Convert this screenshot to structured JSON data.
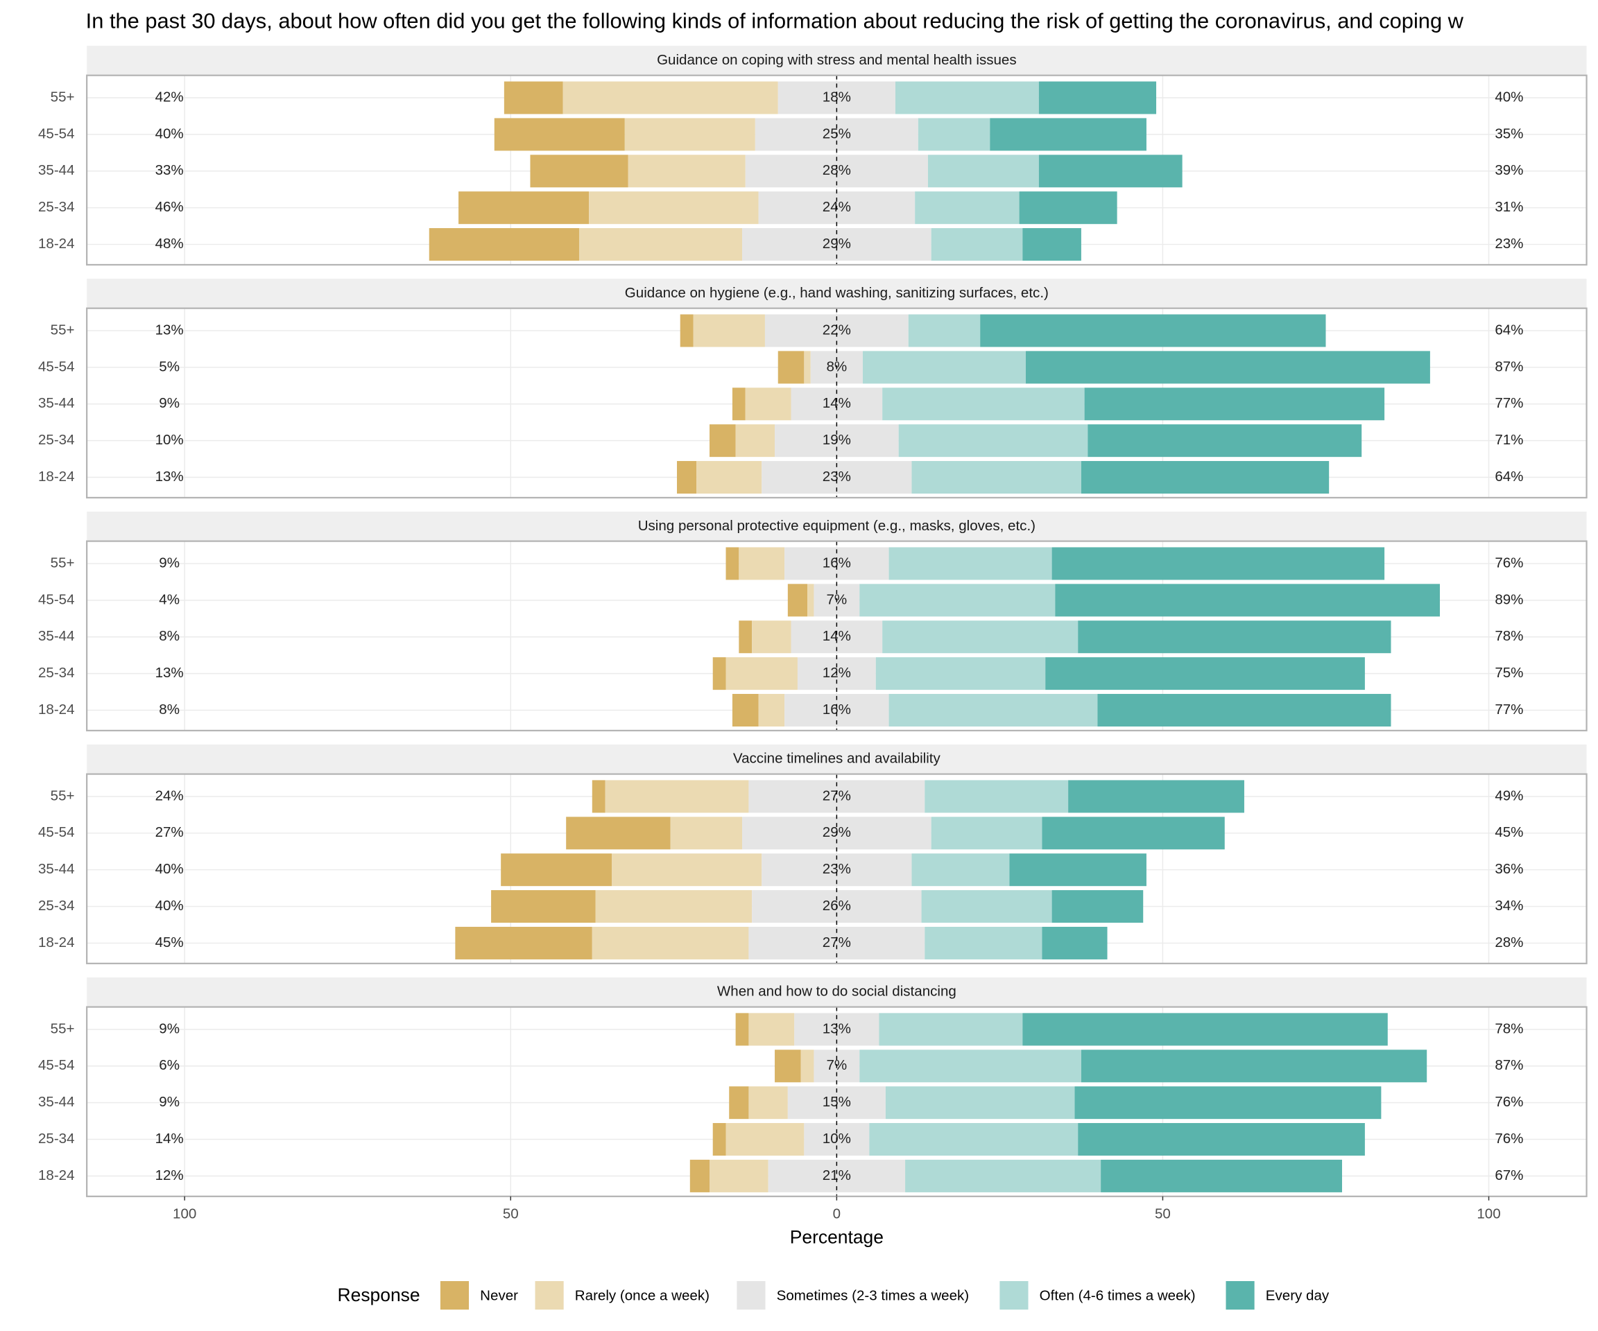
{
  "chart_data": {
    "type": "bar",
    "title": "In the past 30 days, about how often did you get the following kinds of information about reducing the risk of getting the coronavirus, and coping w",
    "x_label": "Percentage",
    "legend_title": "Response",
    "xlim": [
      -115,
      115
    ],
    "xticks": [
      {
        "value": -100,
        "label": "100"
      },
      {
        "value": -50,
        "label": "50"
      },
      0,
      50,
      100
    ],
    "grid": true,
    "panels": [
      {
        "title": "Guidance on coping with stress and mental health issues",
        "categories": [
          "55+",
          "45-54",
          "35-44",
          "25-34",
          "18-24"
        ],
        "series": [
          {
            "name": "Never",
            "color": "#d8b365",
            "values": [
              9,
              20,
              15,
              20,
              23
            ]
          },
          {
            "name": "Rarely (once a week)",
            "color": "#ebdab2",
            "values": [
              33,
              20,
              18,
              26,
              25
            ]
          },
          {
            "name": "Sometimes (2-3 times a week)",
            "color": "#e5e5e5",
            "values": [
              18,
              25,
              28,
              24,
              29
            ]
          },
          {
            "name": "Often (4-6 times a week)",
            "color": "#afdad6",
            "values": [
              22,
              11,
              17,
              16,
              14
            ]
          },
          {
            "name": "Every day",
            "color": "#5ab4ac",
            "values": [
              18,
              24,
              22,
              15,
              9
            ]
          }
        ],
        "left_labels": [
          "42%",
          "40%",
          "33%",
          "46%",
          "48%"
        ],
        "center_labels": [
          "18%",
          "25%",
          "28%",
          "24%",
          "29%"
        ],
        "right_labels": [
          "40%",
          "35%",
          "39%",
          "31%",
          "23%"
        ]
      },
      {
        "title": "Guidance on hygiene (e.g., hand washing, sanitizing surfaces, etc.)",
        "categories": [
          "55+",
          "45-54",
          "35-44",
          "25-34",
          "18-24"
        ],
        "series": [
          {
            "name": "Never",
            "color": "#d8b365",
            "values": [
              2,
              4,
              2,
              4,
              3
            ]
          },
          {
            "name": "Rarely (once a week)",
            "color": "#ebdab2",
            "values": [
              11,
              1,
              7,
              6,
              10
            ]
          },
          {
            "name": "Sometimes (2-3 times a week)",
            "color": "#e5e5e5",
            "values": [
              22,
              8,
              14,
              19,
              23
            ]
          },
          {
            "name": "Often (4-6 times a week)",
            "color": "#afdad6",
            "values": [
              11,
              25,
              31,
              29,
              26
            ]
          },
          {
            "name": "Every day",
            "color": "#5ab4ac",
            "values": [
              53,
              62,
              46,
              42,
              38
            ]
          }
        ],
        "left_labels": [
          "13%",
          "5%",
          "9%",
          "10%",
          "13%"
        ],
        "center_labels": [
          "22%",
          "8%",
          "14%",
          "19%",
          "23%"
        ],
        "right_labels": [
          "64%",
          "87%",
          "77%",
          "71%",
          "64%"
        ]
      },
      {
        "title": "Using personal protective equipment (e.g., masks, gloves, etc.)",
        "categories": [
          "55+",
          "45-54",
          "35-44",
          "25-34",
          "18-24"
        ],
        "series": [
          {
            "name": "Never",
            "color": "#d8b365",
            "values": [
              2,
              3,
              2,
              2,
              4
            ]
          },
          {
            "name": "Rarely (once a week)",
            "color": "#ebdab2",
            "values": [
              7,
              1,
              6,
              11,
              4
            ]
          },
          {
            "name": "Sometimes (2-3 times a week)",
            "color": "#e5e5e5",
            "values": [
              16,
              7,
              14,
              12,
              16
            ]
          },
          {
            "name": "Often (4-6 times a week)",
            "color": "#afdad6",
            "values": [
              25,
              30,
              30,
              26,
              32
            ]
          },
          {
            "name": "Every day",
            "color": "#5ab4ac",
            "values": [
              51,
              59,
              48,
              49,
              45
            ]
          }
        ],
        "left_labels": [
          "9%",
          "4%",
          "8%",
          "13%",
          "8%"
        ],
        "center_labels": [
          "16%",
          "7%",
          "14%",
          "12%",
          "16%"
        ],
        "right_labels": [
          "76%",
          "89%",
          "78%",
          "75%",
          "77%"
        ]
      },
      {
        "title": "Vaccine timelines and availability",
        "categories": [
          "55+",
          "45-54",
          "35-44",
          "25-34",
          "18-24"
        ],
        "series": [
          {
            "name": "Never",
            "color": "#d8b365",
            "values": [
              2,
              16,
              17,
              16,
              21
            ]
          },
          {
            "name": "Rarely (once a week)",
            "color": "#ebdab2",
            "values": [
              22,
              11,
              23,
              24,
              24
            ]
          },
          {
            "name": "Sometimes (2-3 times a week)",
            "color": "#e5e5e5",
            "values": [
              27,
              29,
              23,
              26,
              27
            ]
          },
          {
            "name": "Often (4-6 times a week)",
            "color": "#afdad6",
            "values": [
              22,
              17,
              15,
              20,
              18
            ]
          },
          {
            "name": "Every day",
            "color": "#5ab4ac",
            "values": [
              27,
              28,
              21,
              14,
              10
            ]
          }
        ],
        "left_labels": [
          "24%",
          "27%",
          "40%",
          "40%",
          "45%"
        ],
        "center_labels": [
          "27%",
          "29%",
          "23%",
          "26%",
          "27%"
        ],
        "right_labels": [
          "49%",
          "45%",
          "36%",
          "34%",
          "28%"
        ]
      },
      {
        "title": "When and how to do social distancing",
        "categories": [
          "55+",
          "45-54",
          "35-44",
          "25-34",
          "18-24"
        ],
        "series": [
          {
            "name": "Never",
            "color": "#d8b365",
            "values": [
              2,
              4,
              3,
              2,
              3
            ]
          },
          {
            "name": "Rarely (once a week)",
            "color": "#ebdab2",
            "values": [
              7,
              2,
              6,
              12,
              9
            ]
          },
          {
            "name": "Sometimes (2-3 times a week)",
            "color": "#e5e5e5",
            "values": [
              13,
              7,
              15,
              10,
              21
            ]
          },
          {
            "name": "Often (4-6 times a week)",
            "color": "#afdad6",
            "values": [
              22,
              34,
              29,
              32,
              30
            ]
          },
          {
            "name": "Every day",
            "color": "#5ab4ac",
            "values": [
              56,
              53,
              47,
              44,
              37
            ]
          }
        ],
        "left_labels": [
          "9%",
          "6%",
          "9%",
          "14%",
          "12%"
        ],
        "center_labels": [
          "13%",
          "7%",
          "15%",
          "10%",
          "21%"
        ],
        "right_labels": [
          "78%",
          "87%",
          "76%",
          "76%",
          "67%"
        ]
      }
    ]
  }
}
